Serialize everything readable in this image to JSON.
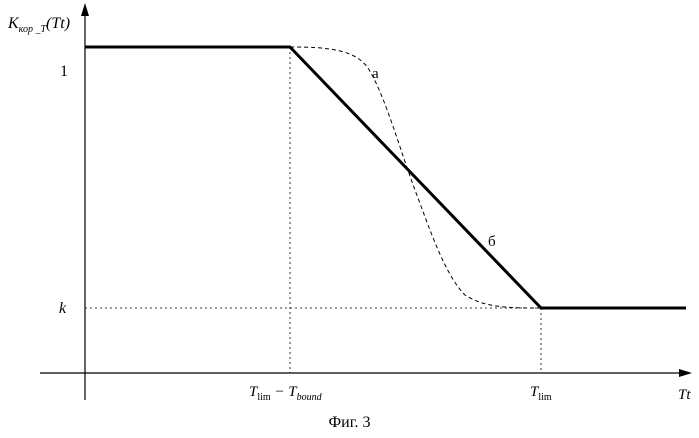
{
  "figure": {
    "caption": "Фиг. 3",
    "y_axis": {
      "symbol": "K",
      "subscript": "кор _T",
      "argument": "(Tt)",
      "tick_top": "1",
      "tick_bottom": "k"
    },
    "x_axis": {
      "label": "Tt",
      "tick_1_main": "T",
      "tick_1_sub": "lim",
      "tick_1_minus": " − T",
      "tick_1_sub2": "bound",
      "tick_2_main": "T",
      "tick_2_sub": "lim"
    },
    "curves": [
      {
        "label": "а",
        "style": "dashed"
      },
      {
        "label": "б",
        "style": "solid-thick"
      }
    ]
  },
  "chart_data": {
    "type": "line",
    "title": "",
    "xlabel": "Tt",
    "ylabel": "K_кор_T(Tt)",
    "x_ticks": [
      "T_lim − T_bound",
      "T_lim"
    ],
    "y_ticks": [
      "1",
      "k"
    ],
    "series": [
      {
        "name": "б",
        "style": "solid",
        "points": [
          {
            "x": "0",
            "y": "1"
          },
          {
            "x": "T_lim − T_bound",
            "y": "1"
          },
          {
            "x": "T_lim",
            "y": "k"
          },
          {
            "x": "∞",
            "y": "k"
          }
        ]
      },
      {
        "name": "а",
        "style": "dashed",
        "shape": "smooth S-curve from 1 at T_lim − T_bound to k at T_lim"
      }
    ]
  }
}
